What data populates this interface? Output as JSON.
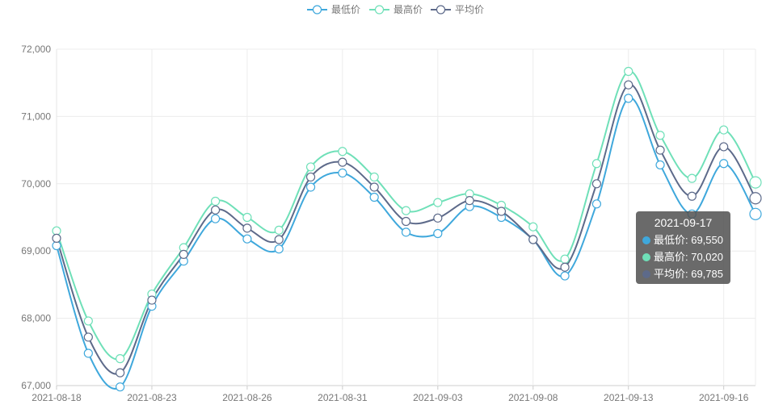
{
  "chart_data": {
    "type": "line",
    "title": "",
    "xlabel": "",
    "ylabel": "",
    "ylim": [
      67000,
      72000
    ],
    "yticks": [
      "67,000",
      "68,000",
      "69,000",
      "70,000",
      "71,000",
      "72,000"
    ],
    "xtick_labels": [
      "2021-08-18",
      "2021-08-23",
      "2021-08-26",
      "2021-08-31",
      "2021-09-03",
      "2021-09-08",
      "2021-09-13",
      "2021-09-16"
    ],
    "x": [
      "2021-08-18",
      "2021-08-19",
      "2021-08-20",
      "2021-08-23",
      "2021-08-24",
      "2021-08-25",
      "2021-08-26",
      "2021-08-27",
      "2021-08-30",
      "2021-08-31",
      "2021-09-01",
      "2021-09-02",
      "2021-09-03",
      "2021-09-06",
      "2021-09-07",
      "2021-09-08",
      "2021-09-09",
      "2021-09-10",
      "2021-09-13",
      "2021-09-14",
      "2021-09-15",
      "2021-09-16",
      "2021-09-17"
    ],
    "grid": true,
    "legend_position": "top-center",
    "series": [
      {
        "name": "最低价",
        "color": "#3fa8dc",
        "values": [
          69080,
          67480,
          66980,
          68180,
          68850,
          69480,
          69180,
          69030,
          69950,
          70160,
          69800,
          69280,
          69260,
          69660,
          69500,
          69170,
          68630,
          69700,
          71270,
          70280,
          69550,
          70300,
          69550
        ]
      },
      {
        "name": "最高价",
        "color": "#6fe0b8",
        "values": [
          69300,
          67960,
          67400,
          68360,
          69050,
          69740,
          69500,
          69310,
          70250,
          70480,
          70100,
          69600,
          69720,
          69850,
          69680,
          69360,
          68880,
          70300,
          71670,
          70720,
          70080,
          70800,
          70020
        ]
      },
      {
        "name": "平均价",
        "color": "#5d6a8a",
        "values": [
          69190,
          67720,
          67190,
          68270,
          68950,
          69610,
          69340,
          69170,
          70100,
          70320,
          69950,
          69440,
          69490,
          69750,
          69590,
          69170,
          68760,
          70000,
          71470,
          70500,
          69815,
          70550,
          69785
        ]
      }
    ],
    "tooltip": {
      "date": "2021-09-17",
      "rows": [
        {
          "label": "最低价: 69,550",
          "color": "#3fa8dc"
        },
        {
          "label": "最高价: 70,020",
          "color": "#6fe0b8"
        },
        {
          "label": "平均价: 69,785",
          "color": "#5d6a8a"
        }
      ]
    }
  }
}
